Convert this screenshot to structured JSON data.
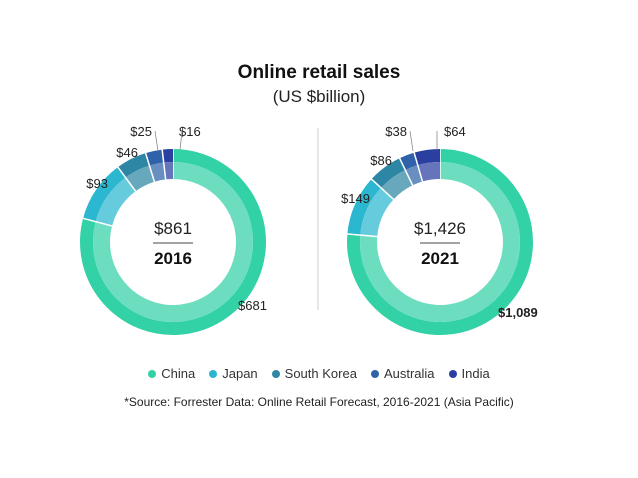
{
  "title": "Online retail sales",
  "subtitle": "(US $billion)",
  "source_note": "*Source: Forrester Data: Online Retail Forecast, 2016-2021 (Asia Pacific)",
  "colors": {
    "China": "#33d1a6",
    "Japan": "#2bb7cf",
    "South Korea": "#2d86a3",
    "Australia": "#2f62a8",
    "India": "#2b3fa0"
  },
  "legend": [
    "China",
    "Japan",
    "South Korea",
    "Australia",
    "India"
  ],
  "chart_data": [
    {
      "type": "pie",
      "style": "donut",
      "year_label": "2016",
      "total_label": "$861",
      "categories": [
        "China",
        "Japan",
        "South Korea",
        "Australia",
        "India"
      ],
      "values": [
        681,
        93,
        46,
        25,
        16
      ],
      "value_labels": [
        "$681",
        "$93",
        "$46",
        "$25",
        "$16"
      ],
      "bold_labels": []
    },
    {
      "type": "pie",
      "style": "donut",
      "year_label": "2021",
      "total_label": "$1,426",
      "categories": [
        "China",
        "Japan",
        "South Korea",
        "Australia",
        "India"
      ],
      "values": [
        1089,
        149,
        86,
        38,
        64
      ],
      "value_labels": [
        "$1,089",
        "$149",
        "$86",
        "$38",
        "$64"
      ],
      "bold_labels": [
        "China"
      ]
    }
  ]
}
